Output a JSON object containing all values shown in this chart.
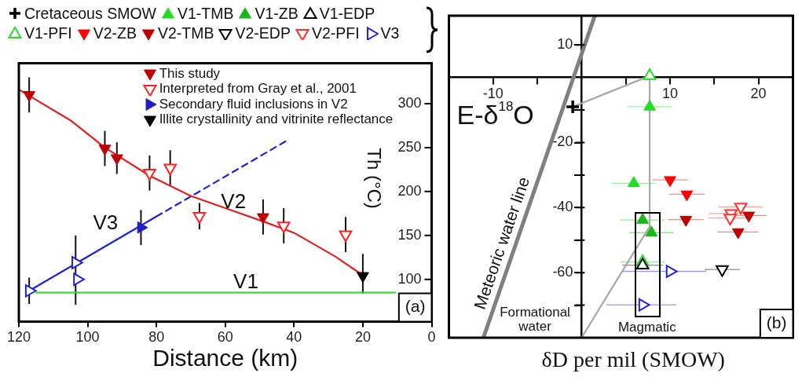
{
  "chart_data": [
    {
      "type": "scatter",
      "xlabel": "Distance (km)",
      "ylabel": "Th (°C)",
      "xlim": [
        120,
        0
      ],
      "ylim": [
        52,
        346
      ],
      "xticks": [
        120,
        100,
        80,
        60,
        40,
        20,
        0
      ],
      "yticks": [
        100,
        150,
        200,
        250,
        300
      ],
      "legend": "top",
      "annotations": [
        "V1",
        "V2",
        "V3",
        "(a)"
      ],
      "series": [
        {
          "name": "This study",
          "color": "#c00000",
          "marker": "triangle-down",
          "x": [
            117,
            95,
            91.5,
            49
          ],
          "values": [
            310,
            249,
            238,
            171
          ],
          "errors": [
            20,
            20,
            18,
            20
          ]
        },
        {
          "name": "Interpreted from Gray et al., 2001",
          "color": "#ff2020",
          "marker": "triangle-down-open",
          "x": [
            82,
            76,
            67.5,
            43,
            25
          ],
          "values": [
            221,
            227,
            172,
            161,
            151
          ],
          "errors": [
            20,
            20,
            15,
            20,
            20
          ]
        },
        {
          "name": "Secondary fluid inclusions in V2",
          "color": "#2020c0",
          "marker": "triangle-right",
          "x": [
            84.5
          ],
          "values": [
            159
          ],
          "errors": [
            20
          ]
        },
        {
          "name": "Illite crystallinity and vitrinite reflectance",
          "color": "#000000",
          "marker": "triangle-down",
          "x": [
            20
          ],
          "values": [
            104
          ],
          "errors": [
            [
              84,
              129
            ]
          ]
        },
        {
          "color": "#2020dd",
          "marker": "triangle-right-open",
          "x": [
            117,
            103.5,
            103
          ],
          "values": [
            87,
            119,
            100
          ],
          "errors": [
            15,
            [
              71,
              150
            ],
            null
          ]
        },
        {
          "type": "line",
          "color": "#e02020",
          "x": [
            120,
            117,
            105,
            95,
            82,
            70,
            60,
            49,
            40,
            28,
            20.5
          ],
          "values": [
            316,
            309,
            281,
            250,
            218,
            195,
            181,
            166,
            153,
            126,
            106
          ]
        },
        {
          "type": "line",
          "color": "#2020dd",
          "line_style": "solid",
          "x": [
            117,
            78.5
          ],
          "values": [
            87,
            175
          ]
        },
        {
          "type": "line",
          "color": "#2020dd",
          "line_style": "dashed",
          "x": [
            42.5,
            78.5
          ],
          "values": [
            257,
            175
          ]
        },
        {
          "type": "line",
          "color": "#22dd22",
          "x": [
            115,
            10.5
          ],
          "values": [
            85,
            85
          ]
        }
      ]
    },
    {
      "type": "scatter",
      "xlabel": "δD per mil (SMOW)",
      "ylabel": "E-δ$^{18}$O",
      "xlim": [
        -15,
        23.9
      ],
      "ylim": [
        -80,
        19
      ],
      "xticks": [
        -10,
        {
          "value": -5,
          "label": null
        },
        {
          "value": 5,
          "label": null
        },
        10,
        {
          "value": 15,
          "label": null
        },
        20
      ],
      "yticks": [
        10,
        {
          "value": -10,
          "label": null
        },
        -20,
        {
          "value": -30,
          "label": null
        },
        -40,
        {
          "value": -50,
          "label": null
        },
        -60,
        {
          "value": -70,
          "label": null
        }
      ],
      "legend": "top left",
      "annotations": [
        "Formational water",
        "Magmatic",
        "(b)"
      ],
      "series": [
        {
          "type": "line",
          "name": "Meteoric water line",
          "color": "#808080",
          "x": [
            1.5,
            -11.1
          ],
          "values": [
            19,
            -80
          ]
        },
        {
          "type": "line",
          "color": "#a8a8a8",
          "x": [
            -1,
            7.7,
            7.7,
            0
          ],
          "values": [
            -9,
            0.5,
            -45.8,
            -80
          ]
        },
        {
          "name": "Cretaceous SMOW",
          "color": "#000000",
          "marker": "cross",
          "x": [
            -1
          ],
          "values": [
            -9
          ]
        },
        {
          "name": "V1-TMB",
          "color": "#22dd22",
          "marker": "triangle",
          "x": [
            7.7,
            5.9
          ],
          "values": [
            -9,
            -32.5
          ],
          "xerrors": [
            2.5,
            2.5
          ]
        },
        {
          "name": "V1-ZB",
          "color": "#18b818",
          "marker": "triangle",
          "x": [
            6.9,
            7.9
          ],
          "values": [
            -43.8,
            -47.7
          ],
          "xerrors": [
            2.5,
            2.5
          ]
        },
        {
          "name": "V1-EDP",
          "color": "#000000",
          "marker": "triangle-open",
          "x": [
            6.9
          ],
          "values": [
            -57.7
          ],
          "xerrors": [
            2.3
          ]
        },
        {
          "name": "V1-PFI",
          "color": "#22dd22",
          "marker": "triangle-open",
          "x": [
            7.7,
            6.9
          ],
          "values": [
            0.5,
            -56.7
          ],
          "xerrors": [
            null,
            2.5
          ]
        },
        {
          "name": "V2-ZB",
          "color": "#ff0000",
          "marker": "triangle-down",
          "x": [
            10,
            11.9
          ],
          "values": [
            -31.5,
            -35.9
          ],
          "xerrors": [
            2,
            2
          ]
        },
        {
          "name": "V2-TMB",
          "color": "#c00000",
          "marker": "triangle-down",
          "x": [
            11.8,
            18.9,
            17.7
          ],
          "values": [
            -43.7,
            -42.4,
            -47.5
          ],
          "xerrors": [
            2,
            2,
            2.3
          ]
        },
        {
          "name": "V2-EDP",
          "color": "#000000",
          "marker": "triangle-down-open",
          "x": [
            15.9
          ],
          "values": [
            -59
          ],
          "xerrors": [
            2
          ]
        },
        {
          "name": "V2-PFI",
          "color": "#ff3030",
          "marker": "triangle-down-open",
          "x": [
            16.9,
            16.8,
            18
          ],
          "values": [
            -41.8,
            -43.2,
            -39.8
          ],
          "xerrors": [
            2.5,
            2.5,
            2.5
          ]
        },
        {
          "name": "V3",
          "color": "#2020dd",
          "marker": "triangle-right-open",
          "x": [
            10,
            6.9
          ],
          "values": [
            -59.6,
            -69.9
          ],
          "xerrors": [
            [
              4.6,
              14.1
            ],
            [
              2.8,
              10.7
            ]
          ]
        }
      ]
    }
  ]
}
